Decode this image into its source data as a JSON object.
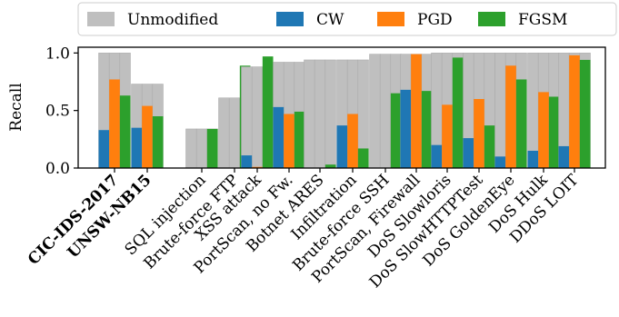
{
  "chart_data": {
    "type": "bar",
    "ylabel": "Recall",
    "ylim": [
      0,
      1.05
    ],
    "yticks": [
      0.0,
      0.5,
      1.0
    ],
    "ytick_labels": [
      "0.0",
      "0.5",
      "1.0"
    ],
    "legend_placement": "top",
    "grid": false,
    "categories": [
      "CIC-IDS-2017",
      "UNSW-NB15",
      "SQL injection",
      "Brute-force FTP",
      "XSS attack",
      "PortScan, no Fw.",
      "Botnet ARES",
      "Infiltration",
      "Brute-force SSH",
      "PortScan, Firewall",
      "DoS Slowloris",
      "DoS SlowHTTPTest",
      "DoS GoldenEye",
      "DoS Hulk",
      "DDoS LOIT"
    ],
    "bold_categories": [
      "CIC-IDS-2017",
      "UNSW-NB15"
    ],
    "series": [
      {
        "name": "Unmodified",
        "color": "#bfbfbf",
        "values": [
          1.0,
          0.73,
          0.34,
          0.61,
          0.88,
          0.92,
          0.94,
          0.94,
          0.99,
          0.99,
          1.0,
          1.0,
          1.0,
          1.0,
          1.0
        ]
      },
      {
        "name": "CW",
        "color": "#1f77b4",
        "values": [
          0.33,
          0.35,
          0.0,
          0.0,
          0.11,
          0.53,
          0.0,
          0.37,
          0.0,
          0.68,
          0.2,
          0.26,
          0.1,
          0.15,
          0.19
        ]
      },
      {
        "name": "PGD",
        "color": "#ff7f0e",
        "values": [
          0.77,
          0.54,
          0.0,
          0.0,
          0.01,
          0.47,
          0.0,
          0.47,
          0.0,
          0.99,
          0.55,
          0.6,
          0.89,
          0.66,
          0.98
        ]
      },
      {
        "name": "FGSM",
        "color": "#2ca02c",
        "values": [
          0.63,
          0.45,
          0.34,
          0.89,
          0.97,
          0.49,
          0.03,
          0.17,
          0.65,
          0.67,
          0.96,
          0.37,
          0.77,
          0.62,
          0.94
        ]
      }
    ]
  }
}
